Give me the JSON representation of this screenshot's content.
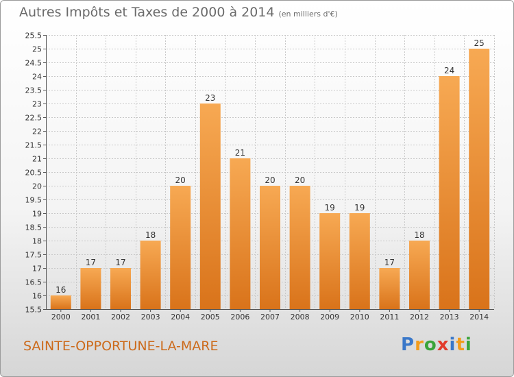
{
  "header": {
    "title": "Autres Impôts et Taxes de 2000 à 2014",
    "unit": "(en milliers d'€)"
  },
  "footer": {
    "commune": "SAINTE-OPPORTUNE-LA-MARE"
  },
  "logo": {
    "text": "Proxiti",
    "letters": [
      {
        "ch": "P",
        "color": "#3a78c9"
      },
      {
        "ch": "r",
        "color": "#f39c1a"
      },
      {
        "ch": "o",
        "color": "#3aa43a"
      },
      {
        "ch": "x",
        "color": "#e23a2a"
      },
      {
        "ch": "i",
        "color": "#3a78c9"
      },
      {
        "ch": "t",
        "color": "#f39c1a"
      },
      {
        "ch": "i",
        "color": "#3aa43a"
      }
    ]
  },
  "colors": {
    "bar_light": "#f7a953",
    "bar_dark": "#d9731a",
    "grid": "#c8c8c8",
    "axis": "#555555"
  },
  "chart_data": {
    "type": "bar",
    "title": "Autres Impôts et Taxes de 2000 à 2014",
    "xlabel": "",
    "ylabel": "",
    "categories": [
      "2000",
      "2001",
      "2002",
      "2003",
      "2004",
      "2005",
      "2006",
      "2007",
      "2008",
      "2009",
      "2010",
      "2011",
      "2012",
      "2013",
      "2014"
    ],
    "values": [
      16,
      17,
      17,
      18,
      20,
      23,
      21,
      20,
      20,
      19,
      19,
      17,
      18,
      24,
      25
    ],
    "value_labels": [
      "16",
      "17",
      "17",
      "18",
      "20",
      "23",
      "21",
      "20",
      "20",
      "19",
      "19",
      "17",
      "18",
      "24",
      "25"
    ],
    "ylim": [
      15.5,
      25.5
    ],
    "yticks": [
      15.5,
      16,
      16.5,
      17,
      17.5,
      18,
      18.5,
      19,
      19.5,
      20,
      20.5,
      21,
      21.5,
      22,
      22.5,
      23,
      23.5,
      24,
      24.5,
      25,
      25.5
    ],
    "ytick_labels": [
      "15.5",
      "16",
      "16.5",
      "17",
      "17.5",
      "18",
      "18.5",
      "19",
      "19.5",
      "20",
      "20.5",
      "21",
      "21.5",
      "22",
      "22.5",
      "23",
      "23.5",
      "24",
      "24.5",
      "25",
      "25.5"
    ],
    "grid": true,
    "legend": "none"
  }
}
